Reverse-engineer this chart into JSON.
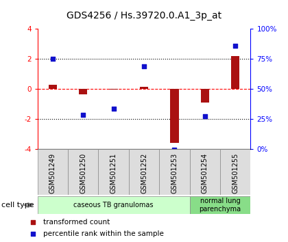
{
  "title": "GDS4256 / Hs.39720.0.A1_3p_at",
  "samples": [
    "GSM501249",
    "GSM501250",
    "GSM501251",
    "GSM501252",
    "GSM501253",
    "GSM501254",
    "GSM501255"
  ],
  "transformed_count": [
    0.3,
    -0.35,
    -0.05,
    0.15,
    -3.6,
    -0.9,
    2.2
  ],
  "percentile_rank": [
    2.0,
    -1.75,
    -1.3,
    1.5,
    -4.05,
    -1.8,
    2.9
  ],
  "ylim": [
    -4,
    4
  ],
  "yticks": [
    -4,
    -2,
    0,
    2,
    4
  ],
  "y2ticks_left": [
    -4,
    -2,
    0,
    2,
    4
  ],
  "y2ticklabels": [
    "0%",
    "25%",
    "50%",
    "75%",
    "100%"
  ],
  "bar_color": "#AA1111",
  "scatter_color": "#1111CC",
  "cell_type_groups": [
    {
      "label": "caseous TB granulomas",
      "n_samples": 5,
      "color": "#CCFFCC"
    },
    {
      "label": "normal lung\nparenchyma",
      "n_samples": 2,
      "color": "#88DD88"
    }
  ],
  "legend_items": [
    {
      "label": "transformed count",
      "color": "#AA1111"
    },
    {
      "label": "percentile rank within the sample",
      "color": "#1111CC"
    }
  ],
  "cell_type_label": "cell type",
  "title_fontsize": 10,
  "tick_fontsize": 7.5,
  "label_fontsize": 7,
  "legend_fontsize": 7.5
}
